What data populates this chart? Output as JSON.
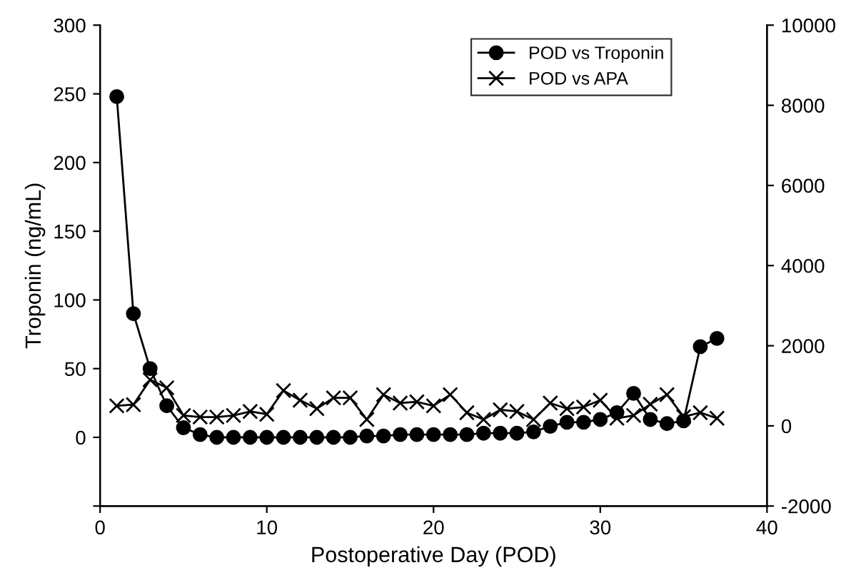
{
  "chart_data": {
    "type": "line",
    "xlabel": "Postoperative Day (POD)",
    "ylabel": "Troponin (ng/mL)",
    "x": [
      1,
      2,
      3,
      4,
      5,
      6,
      7,
      8,
      9,
      10,
      11,
      12,
      13,
      14,
      15,
      16,
      17,
      18,
      19,
      20,
      21,
      22,
      23,
      24,
      25,
      26,
      27,
      28,
      29,
      30,
      31,
      32,
      33,
      34,
      35,
      36,
      37
    ],
    "series": [
      {
        "name": "POD vs Troponin",
        "color": "#000000",
        "marker": "circle",
        "values": [
          248,
          90,
          50,
          23,
          7,
          2,
          0,
          0,
          0,
          0,
          0,
          0,
          0,
          0,
          0,
          1,
          1,
          2,
          2,
          2,
          2,
          2,
          3,
          3,
          3,
          4,
          8,
          11,
          11,
          13,
          18,
          32,
          13,
          10,
          12,
          66,
          72
        ]
      },
      {
        "name": "POD vs APA",
        "color": "#000000",
        "marker": "cross",
        "axis": "y2",
        "values": [
          500,
          530,
          1150,
          950,
          260,
          220,
          220,
          260,
          360,
          290,
          880,
          640,
          430,
          700,
          700,
          160,
          780,
          570,
          600,
          500,
          780,
          330,
          160,
          400,
          360,
          160,
          570,
          430,
          470,
          640,
          190,
          260,
          540,
          780,
          230,
          330,
          190
        ]
      }
    ],
    "xlim": [
      0,
      40
    ],
    "xticks": [
      0,
      10,
      20,
      30,
      40
    ],
    "ylim": [
      -50,
      300
    ],
    "yticks": [
      {
        "value": -50,
        "label": null
      },
      0,
      50,
      100,
      150,
      200,
      250,
      300
    ],
    "y2lim": [
      -2000,
      10000
    ],
    "y2ticks": [
      -2000,
      0,
      2000,
      4000,
      6000,
      8000,
      10000
    ],
    "grid": false,
    "legend": "top right",
    "line_style": "solid"
  }
}
